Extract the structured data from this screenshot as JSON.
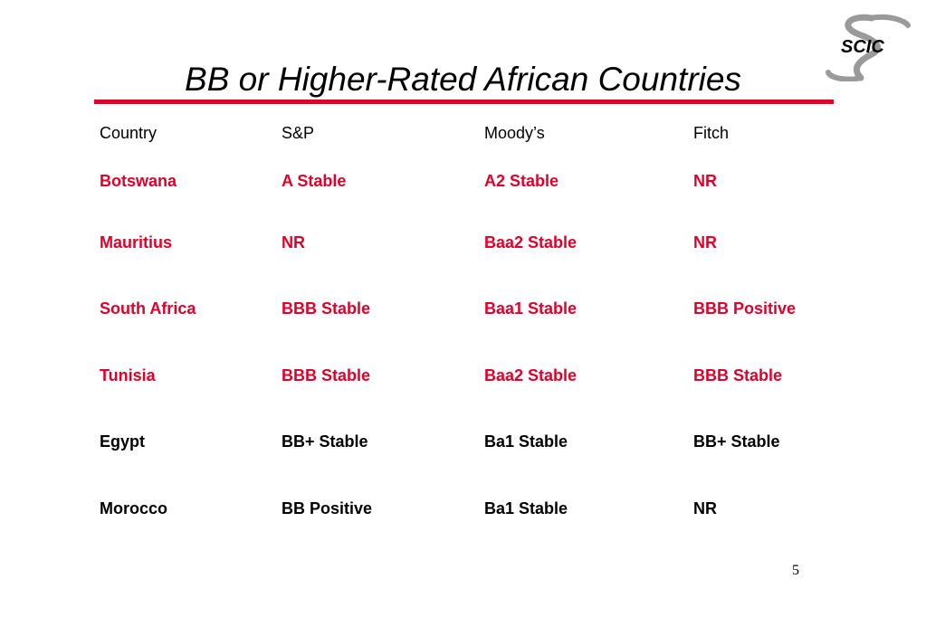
{
  "slide": {
    "title": "BB or Higher-Rated African Countries",
    "logo_text": "SCIC",
    "page_number": "5"
  },
  "colors": {
    "accent": "#e0002a",
    "text": "#000000"
  },
  "table": {
    "headers": [
      "Country",
      "S&P",
      "Moody’s",
      "Fitch"
    ],
    "rows": [
      {
        "cells": [
          "Botswana",
          "A Stable",
          "A2 Stable",
          "NR"
        ],
        "color": "#e0002a"
      },
      {
        "cells": [
          "Mauritius",
          "NR",
          "Baa2 Stable",
          "NR"
        ],
        "color": "#e0002a"
      },
      {
        "cells": [
          "South Africa",
          "BBB Stable",
          "Baa1 Stable",
          "BBB Positive"
        ],
        "color": "#e0002a"
      },
      {
        "cells": [
          "Tunisia",
          "BBB Stable",
          "Baa2 Stable",
          "BBB Stable"
        ],
        "color": "#e0002a"
      },
      {
        "cells": [
          "Egypt",
          "BB+ Stable",
          "Ba1 Stable",
          "BB+ Stable"
        ],
        "color": "#000000"
      },
      {
        "cells": [
          "Morocco",
          "BB Positive",
          "Ba1 Stable",
          "NR"
        ],
        "color": "#000000"
      }
    ]
  }
}
